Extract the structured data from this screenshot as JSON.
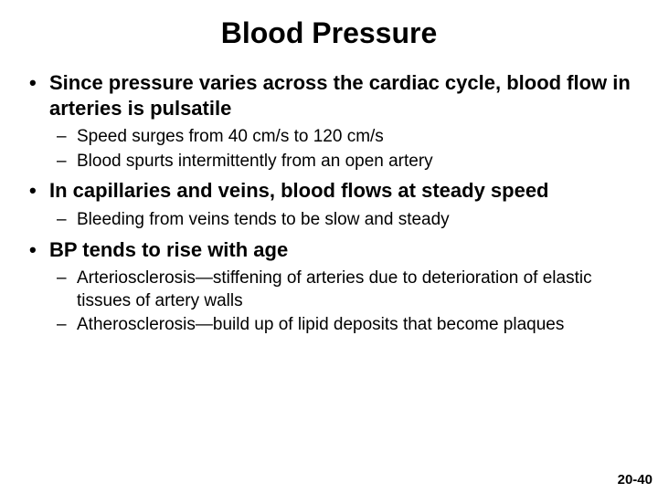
{
  "title": "Blood Pressure",
  "bullets": [
    {
      "text": "Since pressure varies across the cardiac cycle, blood flow in arteries is pulsatile",
      "sub": [
        "Speed surges from 40 cm/s to 120 cm/s",
        "Blood spurts intermittently from an open artery"
      ]
    },
    {
      "text": "In capillaries and veins, blood flows at steady speed",
      "sub": [
        "Bleeding from veins tends to be slow and steady"
      ]
    },
    {
      "text": "BP tends to rise with age",
      "sub": [
        "Arteriosclerosis—stiffening of arteries due to deterioration of elastic tissues of artery walls",
        "Atherosclerosis—build up of lipid deposits that become plaques"
      ]
    }
  ],
  "pageNumber": "20-40"
}
